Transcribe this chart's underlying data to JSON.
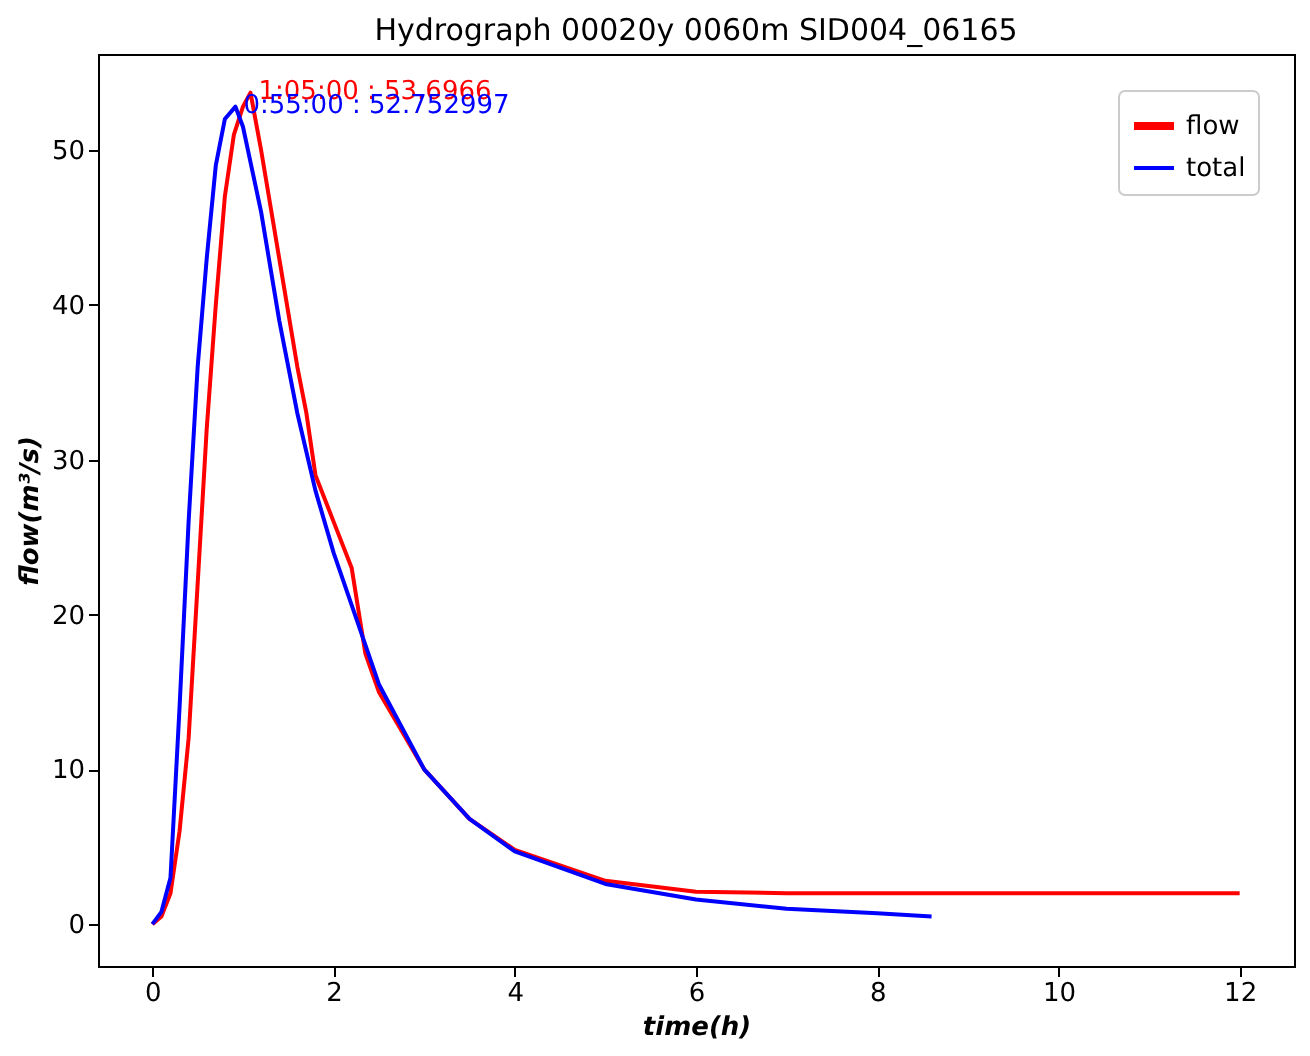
{
  "chart_data": {
    "type": "line",
    "title": "Hydrograph 00020y 0060m SID004_06165",
    "xlabel": "time(h)",
    "ylabel": "flow(m³/s)",
    "xlim": [
      -0.6,
      12.6
    ],
    "ylim": [
      -2.7,
      56.2
    ],
    "xticks": [
      0,
      2,
      4,
      6,
      8,
      10,
      12
    ],
    "yticks": [
      0,
      10,
      20,
      30,
      40,
      50
    ],
    "grid": false,
    "legend": "top right",
    "marker": "none",
    "line_style": "solid",
    "series": [
      {
        "name": "flow",
        "color": "#ff0000",
        "x": [
          0,
          0.1,
          0.2,
          0.3,
          0.4,
          0.5,
          0.6,
          0.7,
          0.8,
          0.9,
          1.0,
          1.083,
          1.2,
          1.4,
          1.6,
          1.7,
          1.8,
          2.0,
          2.2,
          2.35,
          2.5,
          3,
          3.5,
          4,
          5,
          6,
          7,
          12
        ],
        "values": [
          0,
          0.5,
          2,
          6,
          12,
          22,
          32,
          40,
          47,
          51,
          52.8,
          53.7,
          50,
          43,
          36,
          33,
          29,
          26,
          23,
          17.5,
          15,
          10,
          6.8,
          4.8,
          2.8,
          2.1,
          2,
          2
        ]
      },
      {
        "name": "total",
        "color": "#0000ff",
        "x": [
          0,
          0.1,
          0.2,
          0.3,
          0.4,
          0.5,
          0.6,
          0.7,
          0.8,
          0.917,
          1.0,
          1.2,
          1.4,
          1.6,
          1.8,
          2.0,
          2.5,
          3,
          3.5,
          4,
          5,
          6,
          7,
          8,
          8.6
        ],
        "values": [
          0,
          0.8,
          3,
          14,
          26,
          36,
          43,
          49,
          52,
          52.8,
          51.5,
          46,
          39,
          33,
          28,
          24,
          15.5,
          10,
          6.8,
          4.7,
          2.6,
          1.6,
          1.0,
          0.7,
          0.5
        ]
      }
    ],
    "annotations": [
      {
        "text": "1:05:00 : 53.6966",
        "x": 1.083,
        "y": 53.7
      },
      {
        "text": "0:55:00 : 52.752997",
        "x": 0.917,
        "y": 52.75
      }
    ]
  }
}
